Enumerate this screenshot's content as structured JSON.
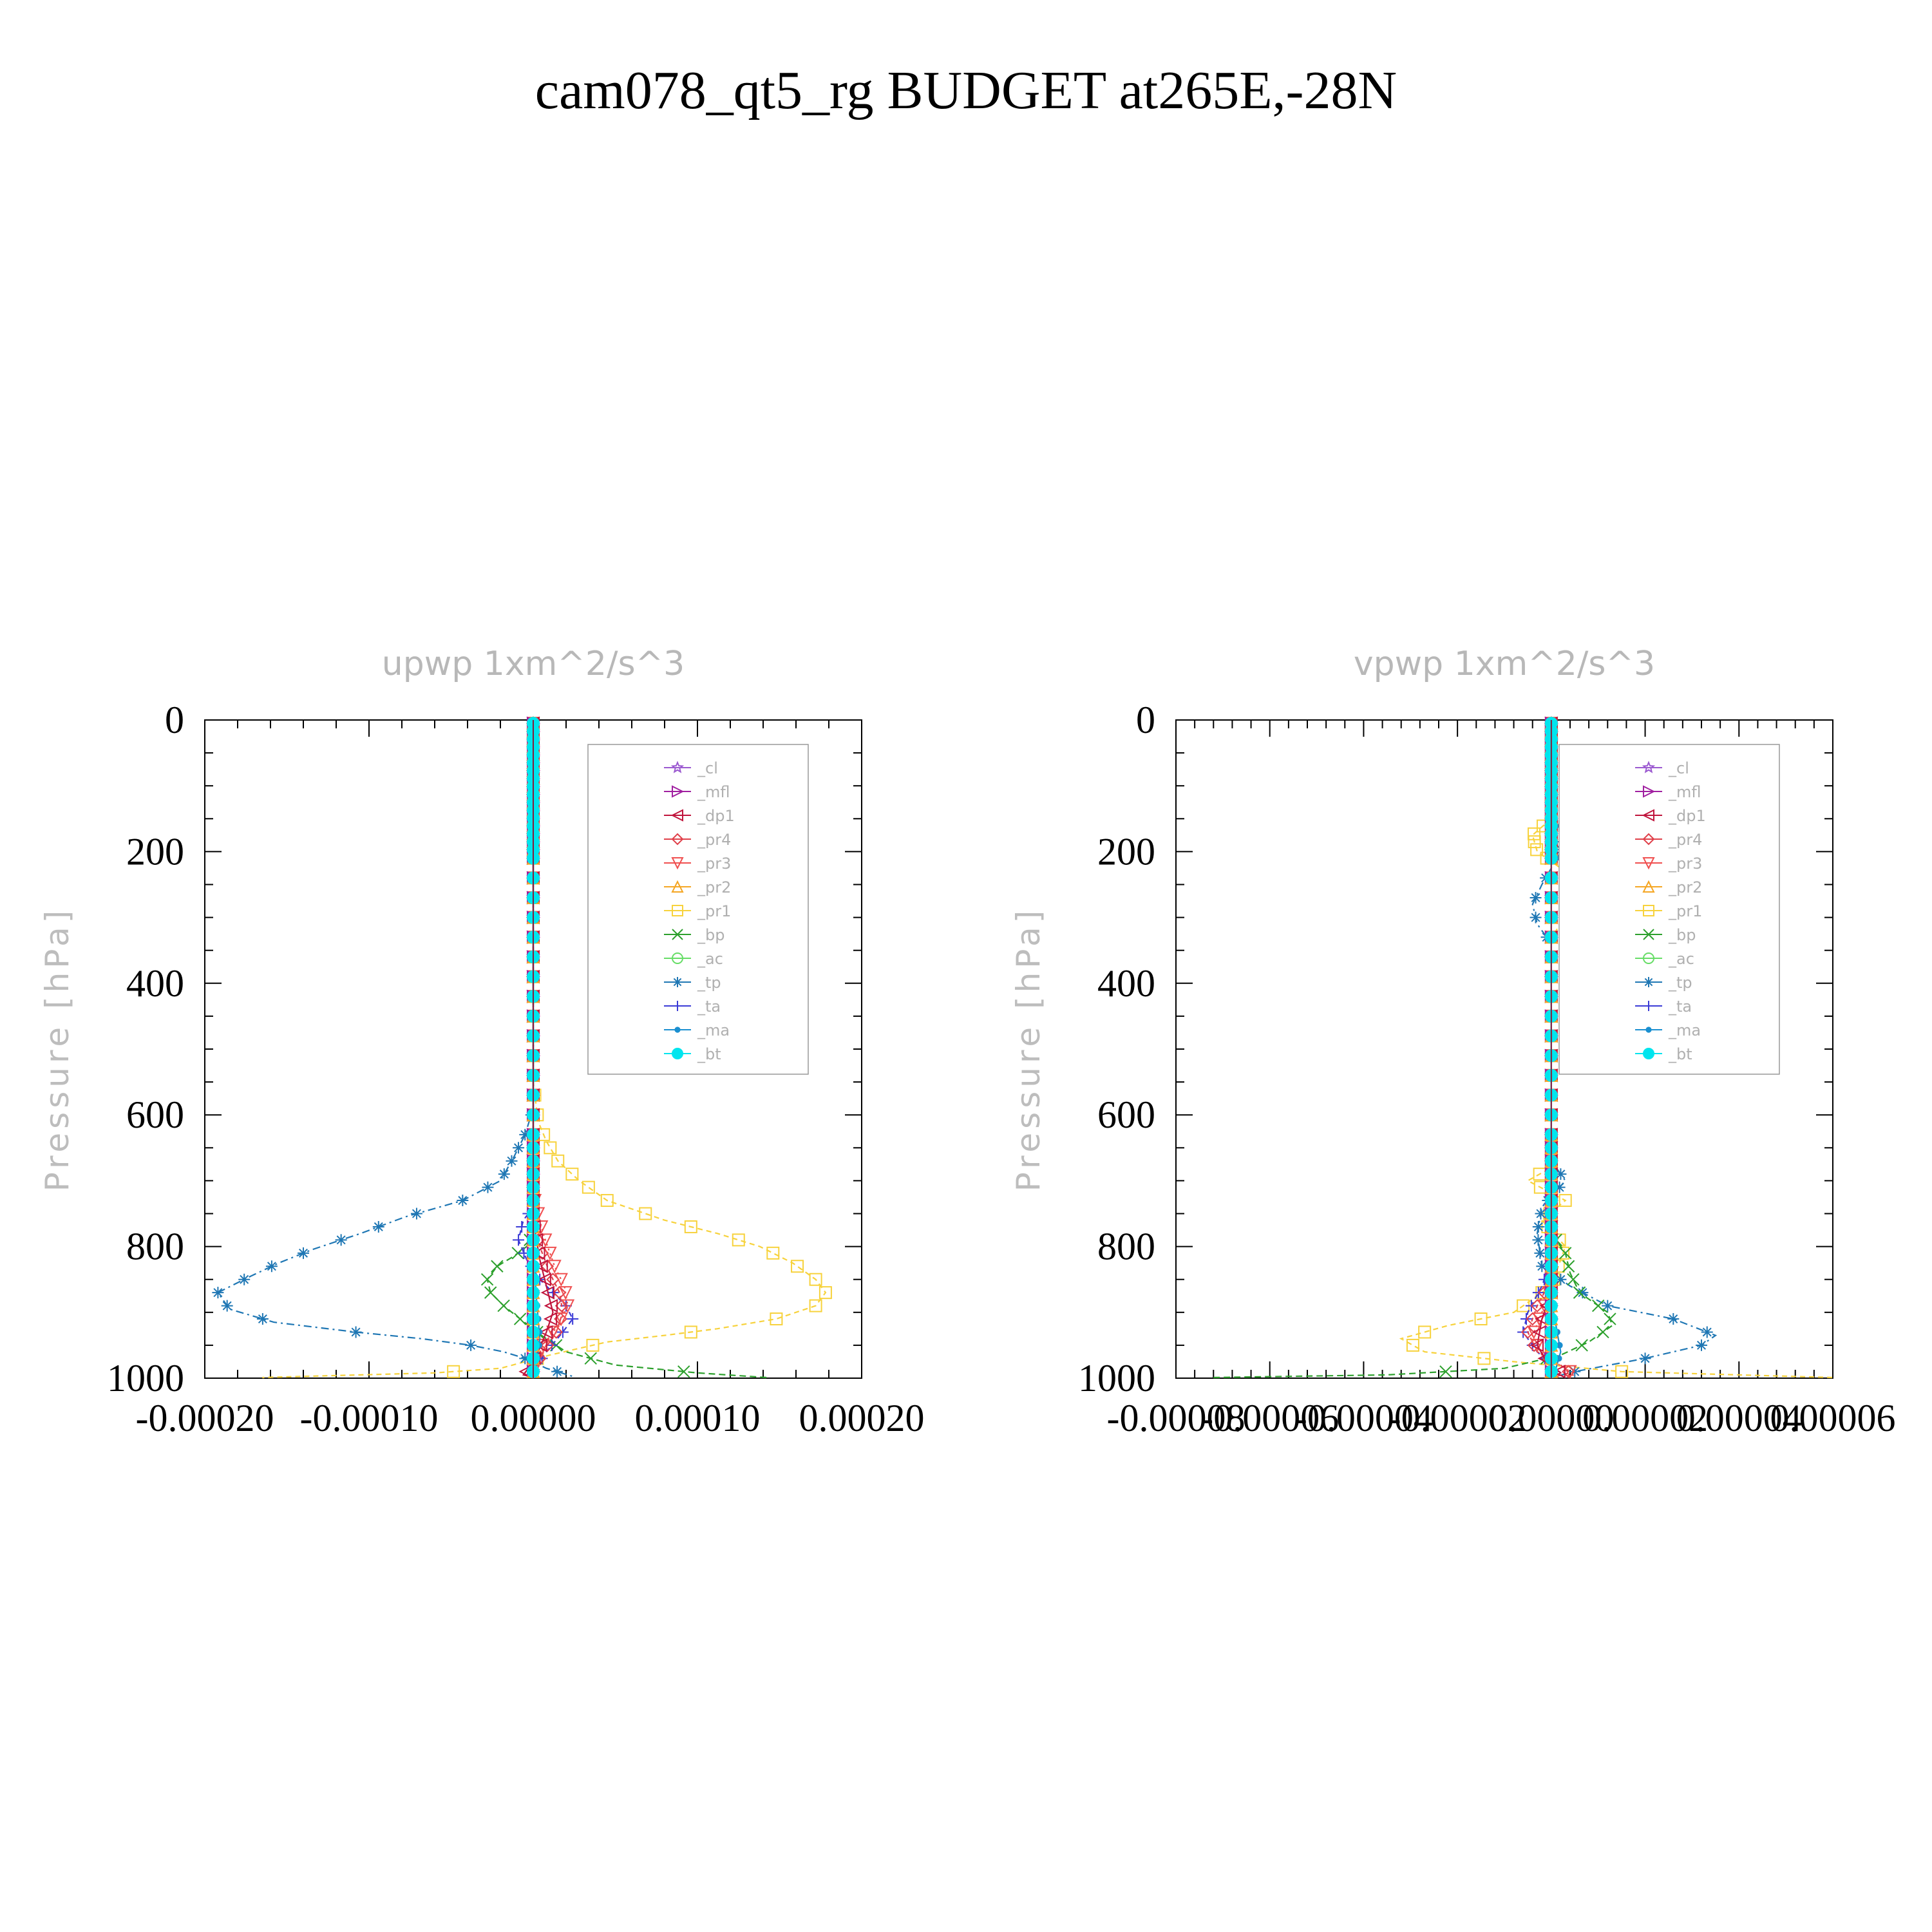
{
  "title": "cam078_qt5_rg  BUDGET at265E,-28N",
  "legend_entries": [
    {
      "name": "_cl",
      "color": "#9b59d0",
      "marker": "star"
    },
    {
      "name": "_mfl",
      "color": "#a020a0",
      "marker": "tri-right"
    },
    {
      "name": "_dp1",
      "color": "#c0143c",
      "marker": "tri-left"
    },
    {
      "name": "_pr4",
      "color": "#e0404a",
      "marker": "diamond"
    },
    {
      "name": "_pr3",
      "color": "#f05050",
      "marker": "tri-down"
    },
    {
      "name": "_pr2",
      "color": "#f5a623",
      "marker": "tri-up"
    },
    {
      "name": "_pr1",
      "color": "#f7d23c",
      "marker": "square"
    },
    {
      "name": "_bp",
      "color": "#2ca02c",
      "marker": "x"
    },
    {
      "name": "_ac",
      "color": "#66dd66",
      "marker": "circle"
    },
    {
      "name": "_tp",
      "color": "#1f77b4",
      "marker": "asterisk"
    },
    {
      "name": "_ta",
      "color": "#3b3bd6",
      "marker": "plus"
    },
    {
      "name": "_ma",
      "color": "#1a8fd0",
      "marker": "dot"
    },
    {
      "name": "_bt",
      "color": "#00e5ee",
      "marker": "filled-circle"
    }
  ],
  "chart_data": [
    {
      "type": "line",
      "title": "upwp    1xm^2/s^3",
      "xlabel": "",
      "ylabel": "Pressure [hPa]",
      "xlim": [
        -0.0002,
        0.0002
      ],
      "ylim": [
        1000,
        0
      ],
      "y_inverted": true,
      "xticks": [
        "-0.00020",
        "-0.00010",
        "0.00000",
        "0.00010",
        "0.00020"
      ],
      "xtick_values": [
        -0.0002,
        -0.0001,
        0.0,
        0.0001,
        0.0002
      ],
      "yticks": [
        "0",
        "200",
        "400",
        "600",
        "800",
        "1000"
      ],
      "ytick_values": [
        0,
        200,
        400,
        600,
        800,
        1000
      ],
      "legend_position": "top-right",
      "series": [
        {
          "name": "_pr1",
          "color": "#f7d23c",
          "marker": "square",
          "dash": "8,6",
          "x": [
            0,
            0,
            3e-06,
            8e-06,
            1.5e-05,
            2.8e-05,
            4.5e-05,
            8e-05,
            0.000112,
            0.000138,
            0.000158,
            0.000172,
            0.000178,
            0.000172,
            0.000148,
            0.000112,
            8e-05,
            4.5e-05,
            1e-05,
            -2e-05,
            -6e-05,
            -0.00012,
            -0.000165
          ],
          "y": [
            0,
            550,
            610,
            640,
            670,
            700,
            730,
            760,
            780,
            800,
            825,
            850,
            870,
            890,
            910,
            925,
            935,
            945,
            965,
            985,
            992,
            996,
            999
          ]
        },
        {
          "name": "_tp",
          "color": "#1f77b4",
          "marker": "asterisk",
          "dash": "12,6,3,6",
          "x": [
            0,
            0,
            -5e-06,
            -1.2e-05,
            -2e-05,
            -4.3e-05,
            -7.8e-05,
            -0.000105,
            -0.000135,
            -0.000155,
            -0.000172,
            -0.000192,
            -0.000185,
            -0.000158,
            -0.000108,
            -6.8e-05,
            -3.8e-05,
            -1.8e-05,
            -5e-06,
            8e-06,
            2.5e-05
          ],
          "y": [
            0,
            590,
            630,
            665,
            700,
            730,
            755,
            780,
            805,
            825,
            845,
            870,
            895,
            915,
            930,
            940,
            950,
            960,
            970,
            985,
            998
          ]
        },
        {
          "name": "_bp",
          "color": "#2ca02c",
          "marker": "x",
          "dash": "10,6",
          "x": [
            0,
            0,
            -4e-06,
            -1.2e-05,
            -2.2e-05,
            -2.8e-05,
            -2.6e-05,
            -1.8e-05,
            -8e-06,
            5e-06,
            2e-05,
            5e-05,
            0.0001,
            0.000142
          ],
          "y": [
            0,
            780,
            800,
            815,
            830,
            850,
            870,
            890,
            910,
            935,
            960,
            980,
            992,
            999
          ]
        },
        {
          "name": "_ta",
          "color": "#3b3bd6",
          "marker": "plus",
          "dash": "8,6",
          "x": [
            0,
            0,
            -6e-06,
            -9e-06,
            -4e-06,
            4e-06,
            1.2e-05,
            2e-05,
            2.4e-05,
            1.8e-05,
            8e-06,
            0
          ],
          "y": [
            0,
            740,
            760,
            790,
            820,
            850,
            870,
            890,
            910,
            930,
            960,
            990
          ]
        },
        {
          "name": "_pr4",
          "color": "#e0404a",
          "marker": "diamond",
          "dash": "6,5",
          "x": [
            0,
            0,
            4e-06,
            1e-05,
            1.6e-05,
            1.8e-05,
            1.4e-05,
            6e-06,
            0
          ],
          "y": [
            0,
            760,
            800,
            840,
            870,
            900,
            930,
            960,
            990
          ]
        },
        {
          "name": "_pr3",
          "color": "#f05050",
          "marker": "tri-down",
          "dash": "3,5",
          "x": [
            0,
            0,
            6e-06,
            1.3e-05,
            1.9e-05,
            2.1e-05,
            1.5e-05,
            6e-06,
            0
          ],
          "y": [
            0,
            720,
            780,
            830,
            860,
            890,
            920,
            950,
            985
          ]
        },
        {
          "name": "_dp1",
          "color": "#c0143c",
          "marker": "tri-left",
          "dash": "",
          "x": [
            0,
            0,
            4e-06,
            9e-06,
            1.2e-05,
            8e-06,
            3e-06,
            -3e-06,
            -6e-06,
            0
          ],
          "y": [
            0,
            760,
            820,
            870,
            900,
            930,
            960,
            985,
            995,
            999
          ]
        },
        {
          "name": "_ma",
          "color": "#1a8fd0",
          "marker": "dot",
          "dash": "",
          "x": [
            0,
            0,
            2e-06,
            4e-06,
            2e-06,
            0
          ],
          "y": [
            0,
            800,
            880,
            940,
            980,
            999
          ]
        },
        {
          "name": "_cl",
          "color": "#9b59d0",
          "marker": "star",
          "dash": "2,4",
          "x": [
            0,
            0
          ],
          "y": [
            0,
            1000
          ]
        },
        {
          "name": "_mfl",
          "color": "#a020a0",
          "marker": "tri-right",
          "dash": "2,4",
          "x": [
            0,
            0
          ],
          "y": [
            0,
            1000
          ]
        },
        {
          "name": "_ac",
          "color": "#66dd66",
          "marker": "circle",
          "dash": "2,4",
          "x": [
            0,
            0
          ],
          "y": [
            0,
            1000
          ]
        },
        {
          "name": "_pr2",
          "color": "#f5a623",
          "marker": "tri-up",
          "dash": "2,4",
          "x": [
            0,
            0
          ],
          "y": [
            0,
            1000
          ]
        },
        {
          "name": "_bt",
          "color": "#00e5ee",
          "marker": "filled-circle",
          "dash": "",
          "x": [
            0,
            0
          ],
          "y": [
            0,
            1000
          ]
        }
      ]
    },
    {
      "type": "line",
      "title": "vpwp    1xm^2/s^3",
      "xlabel": "",
      "ylabel": "Pressure [hPa]",
      "xlim": [
        -8e-05,
        6e-05
      ],
      "ylim": [
        1000,
        0
      ],
      "y_inverted": true,
      "xticks": [
        "-0.00008",
        "-0.00006",
        "-0.00004",
        "-0.00002",
        "0.00000",
        "0.00002",
        "0.00004",
        "0.00006"
      ],
      "xtick_values": [
        -8e-05,
        -6e-05,
        -4e-05,
        -2e-05,
        0.0,
        2e-05,
        4e-05,
        6e-05
      ],
      "yticks": [
        "0",
        "200",
        "400",
        "600",
        "800",
        "1000"
      ],
      "ytick_values": [
        0,
        200,
        400,
        600,
        800,
        1000
      ],
      "legend_position": "top-right",
      "series": [
        {
          "name": "_pr1",
          "color": "#f7d23c",
          "marker": "square",
          "dash": "8,6",
          "x": [
            0,
            0,
            -4e-06,
            -3e-06,
            3e-06,
            6e-06,
            4e-06,
            0,
            0,
            -5e-06,
            3e-06,
            -2e-06,
            3e-06,
            0,
            -8e-06,
            -2.2e-05,
            -3.2e-05,
            -2.7e-05,
            -8e-06,
            1.5e-05,
            6e-05
          ],
          "y": [
            0,
            150,
            175,
            200,
            230,
            260,
            290,
            330,
            680,
            700,
            730,
            760,
            800,
            860,
            900,
            920,
            940,
            960,
            975,
            990,
            999
          ]
        },
        {
          "name": "_tp",
          "color": "#1f77b4",
          "marker": "asterisk",
          "dash": "12,6,3,6",
          "x": [
            0,
            0,
            3e-06,
            2e-06,
            -2e-06,
            -4e-06,
            -3e-06,
            0,
            0,
            3e-06,
            -2e-06,
            -3e-06,
            -2e-06,
            4e-06,
            1.2e-05,
            2.6e-05,
            3.5e-05,
            3.2e-05,
            2e-05,
            5e-06,
            0
          ],
          "y": [
            0,
            150,
            170,
            200,
            250,
            280,
            310,
            340,
            670,
            700,
            740,
            780,
            830,
            860,
            890,
            910,
            935,
            950,
            970,
            990,
            999
          ]
        },
        {
          "name": "_bp",
          "color": "#2ca02c",
          "marker": "x",
          "dash": "10,6",
          "x": [
            0,
            0,
            3e-06,
            4e-06,
            6e-06,
            1.2e-05,
            1.3e-05,
            8e-06,
            2e-06,
            -1e-05,
            -3.5e-05,
            -7.2e-05
          ],
          "y": [
            0,
            780,
            810,
            840,
            870,
            900,
            920,
            945,
            965,
            985,
            995,
            999
          ]
        },
        {
          "name": "_ta",
          "color": "#3b3bd6",
          "marker": "plus",
          "dash": "8,6",
          "x": [
            0,
            0,
            -2e-06,
            -5e-06,
            -6e-06,
            -3e-06,
            1e-06,
            0
          ],
          "y": [
            0,
            820,
            860,
            900,
            930,
            960,
            985,
            999
          ]
        },
        {
          "name": "_pr4",
          "color": "#e0404a",
          "marker": "diamond",
          "dash": "6,5",
          "x": [
            0,
            0,
            -3e-06,
            -5e-06,
            -3e-06,
            2e-06,
            4e-06,
            0
          ],
          "y": [
            0,
            850,
            890,
            930,
            960,
            980,
            992,
            999
          ]
        },
        {
          "name": "_pr3",
          "color": "#f05050",
          "marker": "tri-down",
          "dash": "3,5",
          "x": [
            0,
            0,
            -2e-06,
            -4e-06,
            -2e-06,
            3e-06,
            5e-06,
            0
          ],
          "y": [
            0,
            860,
            900,
            935,
            965,
            985,
            995,
            999
          ]
        },
        {
          "name": "_dp1",
          "color": "#c0143c",
          "marker": "tri-left",
          "dash": "",
          "x": [
            0,
            0,
            -2e-06,
            -3e-06,
            -1e-06,
            2e-06,
            0
          ],
          "y": [
            0,
            870,
            910,
            950,
            975,
            992,
            999
          ]
        },
        {
          "name": "_ma",
          "color": "#1a8fd0",
          "marker": "dot",
          "dash": "",
          "x": [
            0,
            0,
            1e-06,
            2e-06,
            1e-06,
            0
          ],
          "y": [
            0,
            880,
            920,
            960,
            985,
            999
          ]
        },
        {
          "name": "_cl",
          "color": "#9b59d0",
          "marker": "star",
          "dash": "2,4",
          "x": [
            0,
            0
          ],
          "y": [
            0,
            1000
          ]
        },
        {
          "name": "_mfl",
          "color": "#a020a0",
          "marker": "tri-right",
          "dash": "2,4",
          "x": [
            0,
            0
          ],
          "y": [
            0,
            1000
          ]
        },
        {
          "name": "_ac",
          "color": "#66dd66",
          "marker": "circle",
          "dash": "2,4",
          "x": [
            0,
            0
          ],
          "y": [
            0,
            1000
          ]
        },
        {
          "name": "_pr2",
          "color": "#f5a623",
          "marker": "tri-up",
          "dash": "2,4",
          "x": [
            0,
            0
          ],
          "y": [
            0,
            1000
          ]
        },
        {
          "name": "_bt",
          "color": "#00e5ee",
          "marker": "filled-circle",
          "dash": "",
          "x": [
            0,
            0
          ],
          "y": [
            0,
            1000
          ]
        }
      ]
    }
  ]
}
